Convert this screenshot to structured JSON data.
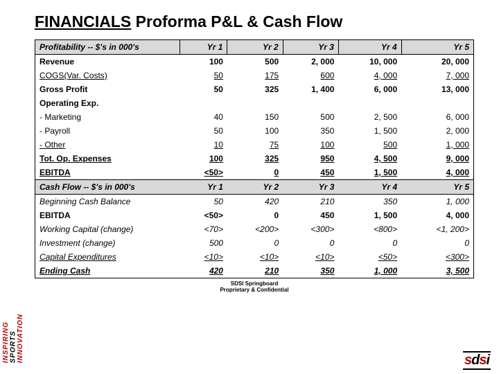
{
  "title_underline": "FINANCIALS",
  "title_rest": " Proforma P&L & Cash Flow",
  "headers": {
    "label": "Profitability -- $'s in 000's",
    "y1": "Yr 1",
    "y2": "Yr 2",
    "y3": "Yr 3",
    "y4": "Yr 4",
    "y5": "Yr 5"
  },
  "rows_top": [
    {
      "label": "Revenue",
      "v": [
        "100",
        "500",
        "2, 000",
        "10, 000",
        "20, 000"
      ],
      "bold": true
    },
    {
      "label": "COGS(Var. Costs)",
      "v": [
        "50",
        "175",
        "600",
        "4, 000",
        "7, 000"
      ],
      "under": true
    },
    {
      "label": "Gross Profit",
      "v": [
        "50",
        "325",
        "1, 400",
        "6, 000",
        "13, 000"
      ],
      "bold": true
    }
  ],
  "opex_label": "Operating Exp.",
  "opex_rows": [
    {
      "label": " - Marketing",
      "v": [
        "40",
        "150",
        "500",
        "2, 500",
        "6, 000"
      ]
    },
    {
      "label": " - Payroll",
      "v": [
        "50",
        "100",
        "350",
        "1, 500",
        "2, 000"
      ]
    },
    {
      "label": " - Other",
      "v": [
        "10",
        "75",
        "100",
        "500",
        "1, 000"
      ],
      "under": true
    }
  ],
  "totopex": {
    "label": "Tot. Op. Expenses",
    "v": [
      "100",
      "325",
      "950",
      "4, 500",
      "9, 000"
    ],
    "under": true,
    "bold": true
  },
  "ebitda1": {
    "label": "EBITDA",
    "v": [
      "<50>",
      "0",
      "450",
      "1, 500",
      "4, 000"
    ],
    "under": true,
    "bold": true
  },
  "headers2": {
    "label": "Cash Flow -- $'s in 000's",
    "y1": "Yr 1",
    "y2": "Yr 2",
    "y3": "Yr 3",
    "y4": "Yr 4",
    "y5": "Yr 5"
  },
  "cash_rows": [
    {
      "label": "Beginning Cash Balance",
      "v": [
        "50",
        "420",
        "210",
        "350",
        "1, 000"
      ],
      "it": true
    },
    {
      "label": "EBITDA",
      "v": [
        "<50>",
        "0",
        "450",
        "1, 500",
        "4, 000"
      ],
      "bold": true
    },
    {
      "label": "Working Capital (change)",
      "v": [
        "<70>",
        "<200>",
        "<300>",
        "<800>",
        "<1, 200>"
      ],
      "it": true
    },
    {
      "label": "Investment (change)",
      "v": [
        "500",
        "0",
        "0",
        "0",
        "0"
      ],
      "it": true
    },
    {
      "label": "Capital Expenditures",
      "v": [
        "<10>",
        "<10>",
        "<10>",
        "<50>",
        "<300>"
      ],
      "it": true,
      "under": true
    },
    {
      "label": "Ending Cash",
      "v": [
        "420",
        "210",
        "350",
        "1, 000",
        "3, 500"
      ],
      "it": true,
      "under": true,
      "bold": true
    }
  ],
  "footer1": "SDSI Springboard",
  "footer2": "Proprietary & Confidential",
  "brand_lines": [
    "INSPIRING",
    "SPORTS",
    "INNOVATION"
  ],
  "logo_text": "sdsi",
  "colors": {
    "header_bg": "#d9d9d9",
    "border": "#000000",
    "accent": "#b00000",
    "text": "#000000",
    "bg": "#ffffff"
  }
}
